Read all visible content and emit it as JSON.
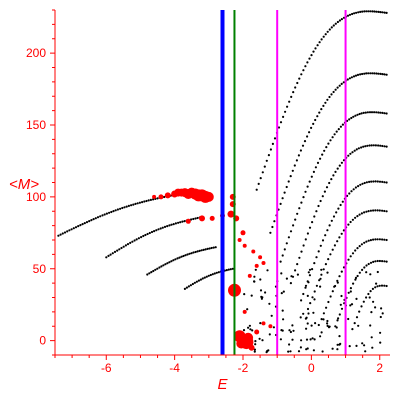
{
  "chart_data": {
    "type": "scatter",
    "title": "",
    "xlabel": "E",
    "ylabel": "<M>",
    "xlim": [
      -7.5,
      2.3
    ],
    "ylim": [
      -10,
      230
    ],
    "x_ticks": [
      -6,
      -4,
      -2,
      0,
      2
    ],
    "y_ticks": [
      0,
      50,
      100,
      150,
      200
    ],
    "grid": false,
    "colors": {
      "axes": "#ff0000",
      "points": "#000000",
      "highlight": "#ff0000",
      "line_blue": "#0000ff",
      "line_green": "#008000",
      "line_magenta": "#ff00ff"
    },
    "vertical_lines": [
      {
        "x": -2.6,
        "color": "#0000ff",
        "width": 4
      },
      {
        "x": -2.25,
        "color": "#008000",
        "width": 2
      },
      {
        "x": -1.0,
        "color": "#ff00ff",
        "width": 2
      },
      {
        "x": 1.0,
        "color": "#ff00ff",
        "width": 2
      }
    ],
    "branches": [
      {
        "x0": -7.4,
        "y0": 73,
        "x1": -3.6,
        "y1": 103,
        "n": 60,
        "curv": 0.15
      },
      {
        "x0": -6.0,
        "y0": 58,
        "x1": -3.2,
        "y1": 86,
        "n": 45,
        "curv": 0.15
      },
      {
        "x0": -4.8,
        "y0": 46,
        "x1": -2.8,
        "y1": 65,
        "n": 35,
        "curv": 0.15
      },
      {
        "x0": -3.7,
        "y0": 36,
        "x1": -2.3,
        "y1": 50,
        "n": 25,
        "curv": 0.15
      },
      {
        "x0": -1.6,
        "y0": 105,
        "x1": 2.2,
        "y1": 228,
        "n": 65,
        "curv": 0.35
      },
      {
        "x0": -1.2,
        "y0": 75,
        "x1": 2.2,
        "y1": 185,
        "n": 58,
        "curv": 0.35
      },
      {
        "x0": -0.9,
        "y0": 55,
        "x1": 2.2,
        "y1": 158,
        "n": 52,
        "curv": 0.35
      },
      {
        "x0": -0.6,
        "y0": 40,
        "x1": 2.2,
        "y1": 135,
        "n": 46,
        "curv": 0.35
      },
      {
        "x0": -0.3,
        "y0": 28,
        "x1": 2.2,
        "y1": 110,
        "n": 40,
        "curv": 0.35
      },
      {
        "x0": -0.1,
        "y0": 22,
        "x1": 2.2,
        "y1": 90,
        "n": 36,
        "curv": 0.35
      },
      {
        "x0": 0.3,
        "y0": 15,
        "x1": 2.2,
        "y1": 70,
        "n": 30,
        "curv": 0.35
      },
      {
        "x0": 0.7,
        "y0": 10,
        "x1": 2.2,
        "y1": 55,
        "n": 24,
        "curv": 0.35
      },
      {
        "x0": 1.2,
        "y0": 8,
        "x1": 2.2,
        "y1": 38,
        "n": 16,
        "curv": 0.35
      }
    ],
    "scatter_cloud": {
      "n": 140,
      "x_range": [
        -2.0,
        2.2
      ],
      "y_range": [
        -8,
        50
      ],
      "seed": 7
    },
    "highlight_points": [
      {
        "x": -4.0,
        "y": 102,
        "r": 3.5
      },
      {
        "x": -3.9,
        "y": 103,
        "r": 4
      },
      {
        "x": -3.8,
        "y": 103,
        "r": 4
      },
      {
        "x": -3.7,
        "y": 103,
        "r": 4.5
      },
      {
        "x": -3.6,
        "y": 102,
        "r": 5
      },
      {
        "x": -3.5,
        "y": 103,
        "r": 5
      },
      {
        "x": -3.4,
        "y": 102,
        "r": 5.5
      },
      {
        "x": -3.3,
        "y": 101,
        "r": 6
      },
      {
        "x": -3.2,
        "y": 101,
        "r": 6
      },
      {
        "x": -3.1,
        "y": 100,
        "r": 6
      },
      {
        "x": -3.0,
        "y": 100,
        "r": 5
      },
      {
        "x": -4.2,
        "y": 101,
        "r": 3
      },
      {
        "x": -4.4,
        "y": 100,
        "r": 2.5
      },
      {
        "x": -4.6,
        "y": 100,
        "r": 2
      },
      {
        "x": -2.3,
        "y": 100,
        "r": 3
      },
      {
        "x": -2.3,
        "y": 95,
        "r": 3
      },
      {
        "x": -2.35,
        "y": 88,
        "r": 3.5
      },
      {
        "x": -2.2,
        "y": 85,
        "r": 3
      },
      {
        "x": -3.6,
        "y": 83,
        "r": 2.5
      },
      {
        "x": -3.2,
        "y": 85,
        "r": 3
      },
      {
        "x": -2.9,
        "y": 85,
        "r": 2.5
      },
      {
        "x": -2.6,
        "y": 87,
        "r": 2.5
      },
      {
        "x": -2.0,
        "y": 75,
        "r": 2.5
      },
      {
        "x": -2.1,
        "y": 70,
        "r": 2
      },
      {
        "x": -1.95,
        "y": 66,
        "r": 2
      },
      {
        "x": -1.7,
        "y": 62,
        "r": 2
      },
      {
        "x": -1.5,
        "y": 58,
        "r": 2
      },
      {
        "x": -1.4,
        "y": 54,
        "r": 2
      },
      {
        "x": -1.6,
        "y": 52,
        "r": 2
      },
      {
        "x": -1.8,
        "y": 45,
        "r": 2
      },
      {
        "x": -2.25,
        "y": 35,
        "r": 6.5
      },
      {
        "x": -1.95,
        "y": 20,
        "r": 2
      },
      {
        "x": -2.1,
        "y": 3,
        "r": 6
      },
      {
        "x": -1.85,
        "y": 2,
        "r": 5
      },
      {
        "x": -1.9,
        "y": -1,
        "r": 7
      },
      {
        "x": -2.05,
        "y": -2,
        "r": 5
      },
      {
        "x": -1.75,
        "y": -5,
        "r": 3
      },
      {
        "x": -1.6,
        "y": 6,
        "r": 2.5
      },
      {
        "x": -1.2,
        "y": 10,
        "r": 2
      },
      {
        "x": -1.4,
        "y": 12,
        "r": 2
      }
    ]
  }
}
